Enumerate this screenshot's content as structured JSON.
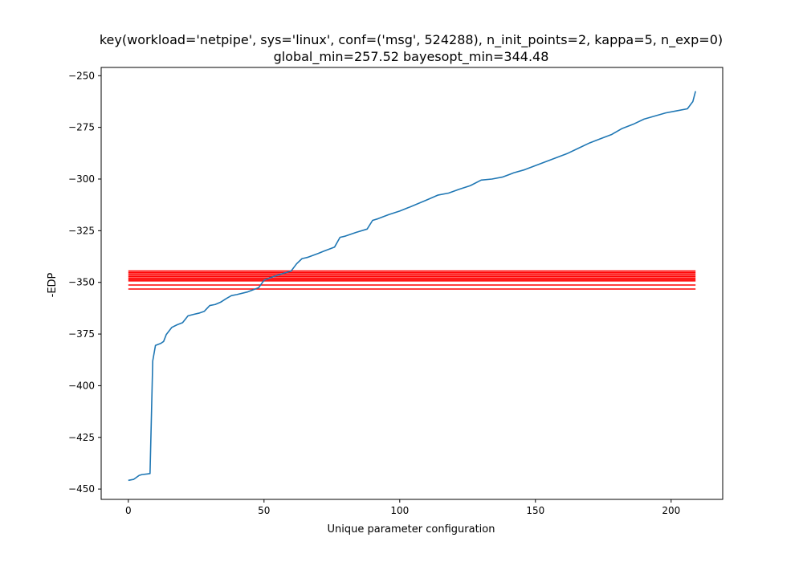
{
  "chart_data": {
    "type": "line",
    "title_line1": "key(workload='netpipe', sys='linux', conf=('msg', 524288), n_init_points=2, kappa=5, n_exp=0)",
    "title_line2": "global_min=257.52 bayesopt_min=344.48",
    "xlabel": "Unique parameter configuration",
    "ylabel": "-EDP",
    "xlim": [
      -10,
      219
    ],
    "ylim": [
      -455,
      -246
    ],
    "x_ticks": [
      0,
      50,
      100,
      150,
      200
    ],
    "y_ticks": [
      -450,
      -425,
      -400,
      -375,
      -350,
      -325,
      -300,
      -275,
      -250
    ],
    "x_tick_labels": [
      "0",
      "50",
      "100",
      "150",
      "200"
    ],
    "y_tick_labels": [
      "−450",
      "−425",
      "−400",
      "−375",
      "−350",
      "−325",
      "−300",
      "−275",
      "−250"
    ],
    "grid": false,
    "series": [
      {
        "color": "#1f77b4",
        "x": [
          0,
          2,
          4,
          5,
          7,
          8,
          9,
          10,
          12,
          13,
          14,
          16,
          18,
          20,
          22,
          24,
          26,
          28,
          30,
          32,
          34,
          36,
          38,
          40,
          44,
          48,
          50,
          52,
          56,
          60,
          62,
          64,
          66,
          70,
          72,
          76,
          78,
          80,
          84,
          88,
          90,
          92,
          96,
          100,
          104,
          110,
          114,
          118,
          122,
          126,
          130,
          134,
          138,
          142,
          146,
          150,
          154,
          158,
          162,
          166,
          170,
          174,
          178,
          182,
          186,
          190,
          194,
          198,
          202,
          206,
          208,
          209
        ],
        "y": [
          -445.8,
          -445.3,
          -443.4,
          -443.0,
          -442.7,
          -442.5,
          -388,
          -380.5,
          -379.5,
          -378.6,
          -375.2,
          -371.8,
          -370.5,
          -369.5,
          -366.2,
          -365.5,
          -364.9,
          -364.0,
          -361.2,
          -360.7,
          -359.6,
          -357.9,
          -356.4,
          -355.9,
          -354.6,
          -352.6,
          -349.0,
          -347.9,
          -346.1,
          -344.5,
          -341.0,
          -338.5,
          -337.9,
          -336.0,
          -334.9,
          -332.9,
          -328.2,
          -327.6,
          -325.8,
          -324.2,
          -320.0,
          -319.2,
          -317.2,
          -315.5,
          -313.4,
          -310.1,
          -307.8,
          -306.8,
          -304.9,
          -303.2,
          -300.5,
          -300.0,
          -299.0,
          -297.0,
          -295.5,
          -293.5,
          -291.5,
          -289.5,
          -287.5,
          -285.0,
          -282.5,
          -280.5,
          -278.5,
          -275.5,
          -273.5,
          -271.0,
          -269.5,
          -268.0,
          -267.0,
          -266.0,
          -262.5,
          -257.5
        ]
      }
    ],
    "hlines": [
      {
        "y": -344.48,
        "color": "#ff0000"
      },
      {
        "y": -345.2,
        "color": "#ff0000"
      },
      {
        "y": -345.9,
        "color": "#ff0000"
      },
      {
        "y": -346.6,
        "color": "#ff0000"
      },
      {
        "y": -347.3,
        "color": "#ff0000"
      },
      {
        "y": -348.0,
        "color": "#ff0000"
      },
      {
        "y": -348.7,
        "color": "#ff0000"
      },
      {
        "y": -349.3,
        "color": "#ff0000"
      },
      {
        "y": -351.3,
        "color": "#ff0000"
      },
      {
        "y": -353.2,
        "color": "#ff0000"
      }
    ],
    "hline_xrange": [
      0,
      209
    ]
  }
}
